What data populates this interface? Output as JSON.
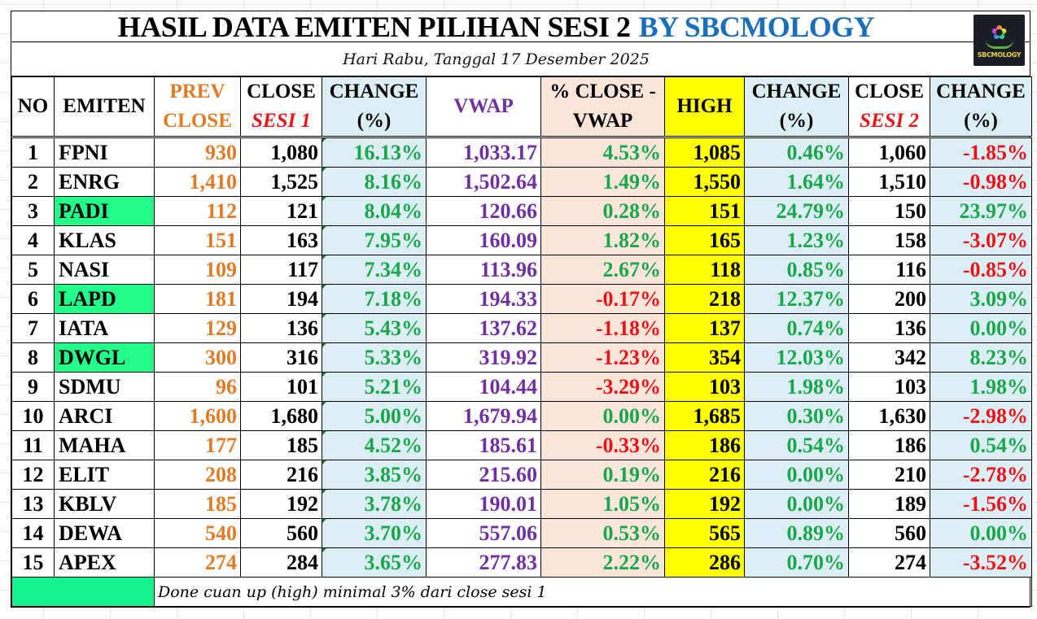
{
  "title": {
    "main": "HASIL DATA EMITEN PILIHAN SESI 2",
    "brand": "BY SBCMOLOGY",
    "subtitle": "Hari Rabu, Tanggal 17 Desember 2025",
    "logo_text": "SBCMOLOGY",
    "logo_icon": "flower-hands-logo-icon"
  },
  "colors": {
    "prev_close": "#e07b27",
    "vwap": "#7030a0",
    "positive": "#1aa64c",
    "negative": "#e8141a",
    "high_bg": "#ffff00",
    "change_bg": "#dbeef4",
    "close_vwap_bg": "#fbe5d8",
    "hit_highlight": "#23ff8a",
    "brand": "#1a6fb8"
  },
  "headers": {
    "no": "NO",
    "emiten": "EMITEN",
    "prev_close_1": "PREV",
    "prev_close_2": "CLOSE",
    "close1_1": "CLOSE",
    "close1_2": "SESI 1",
    "change1_1": "CHANGE",
    "change1_2": "(%)",
    "vwap": "VWAP",
    "close_vwap_1": "% CLOSE  -",
    "close_vwap_2": "VWAP",
    "high": "HIGH",
    "change_high_1": "CHANGE",
    "change_high_2": "(%)",
    "close2_1": "CLOSE",
    "close2_2": "SESI 2",
    "change2_1": "CHANGE",
    "change2_2": "(%)"
  },
  "rows": [
    {
      "no": "1",
      "emiten": "FPNI",
      "hit": false,
      "prev_close": "930",
      "close_sesi1": "1,080",
      "change": "16.13%",
      "vwap": "1,033.17",
      "close_vwap": "4.53%",
      "high": "1,085",
      "change_high": "0.46%",
      "close_sesi2": "1,060",
      "change_sesi2": "-1.85%"
    },
    {
      "no": "2",
      "emiten": "ENRG",
      "hit": false,
      "prev_close": "1,410",
      "close_sesi1": "1,525",
      "change": "8.16%",
      "vwap": "1,502.64",
      "close_vwap": "1.49%",
      "high": "1,550",
      "change_high": "1.64%",
      "close_sesi2": "1,510",
      "change_sesi2": "-0.98%"
    },
    {
      "no": "3",
      "emiten": "PADI",
      "hit": true,
      "prev_close": "112",
      "close_sesi1": "121",
      "change": "8.04%",
      "vwap": "120.66",
      "close_vwap": "0.28%",
      "high": "151",
      "change_high": "24.79%",
      "close_sesi2": "150",
      "change_sesi2": "23.97%"
    },
    {
      "no": "4",
      "emiten": "KLAS",
      "hit": false,
      "prev_close": "151",
      "close_sesi1": "163",
      "change": "7.95%",
      "vwap": "160.09",
      "close_vwap": "1.82%",
      "high": "165",
      "change_high": "1.23%",
      "close_sesi2": "158",
      "change_sesi2": "-3.07%"
    },
    {
      "no": "5",
      "emiten": "NASI",
      "hit": false,
      "prev_close": "109",
      "close_sesi1": "117",
      "change": "7.34%",
      "vwap": "113.96",
      "close_vwap": "2.67%",
      "high": "118",
      "change_high": "0.85%",
      "close_sesi2": "116",
      "change_sesi2": "-0.85%"
    },
    {
      "no": "6",
      "emiten": "LAPD",
      "hit": true,
      "prev_close": "181",
      "close_sesi1": "194",
      "change": "7.18%",
      "vwap": "194.33",
      "close_vwap": "-0.17%",
      "high": "218",
      "change_high": "12.37%",
      "close_sesi2": "200",
      "change_sesi2": "3.09%"
    },
    {
      "no": "7",
      "emiten": "IATA",
      "hit": false,
      "prev_close": "129",
      "close_sesi1": "136",
      "change": "5.43%",
      "vwap": "137.62",
      "close_vwap": "-1.18%",
      "high": "137",
      "change_high": "0.74%",
      "close_sesi2": "136",
      "change_sesi2": "0.00%"
    },
    {
      "no": "8",
      "emiten": "DWGL",
      "hit": true,
      "prev_close": "300",
      "close_sesi1": "316",
      "change": "5.33%",
      "vwap": "319.92",
      "close_vwap": "-1.23%",
      "high": "354",
      "change_high": "12.03%",
      "close_sesi2": "342",
      "change_sesi2": "8.23%"
    },
    {
      "no": "9",
      "emiten": "SDMU",
      "hit": false,
      "prev_close": "96",
      "close_sesi1": "101",
      "change": "5.21%",
      "vwap": "104.44",
      "close_vwap": "-3.29%",
      "high": "103",
      "change_high": "1.98%",
      "close_sesi2": "103",
      "change_sesi2": "1.98%"
    },
    {
      "no": "10",
      "emiten": "ARCI",
      "hit": false,
      "prev_close": "1,600",
      "close_sesi1": "1,680",
      "change": "5.00%",
      "vwap": "1,679.94",
      "close_vwap": "0.00%",
      "high": "1,685",
      "change_high": "0.30%",
      "close_sesi2": "1,630",
      "change_sesi2": "-2.98%"
    },
    {
      "no": "11",
      "emiten": "MAHA",
      "hit": false,
      "prev_close": "177",
      "close_sesi1": "185",
      "change": "4.52%",
      "vwap": "185.61",
      "close_vwap": "-0.33%",
      "high": "186",
      "change_high": "0.54%",
      "close_sesi2": "186",
      "change_sesi2": "0.54%"
    },
    {
      "no": "12",
      "emiten": "ELIT",
      "hit": false,
      "prev_close": "208",
      "close_sesi1": "216",
      "change": "3.85%",
      "vwap": "215.60",
      "close_vwap": "0.19%",
      "high": "216",
      "change_high": "0.00%",
      "close_sesi2": "210",
      "change_sesi2": "-2.78%"
    },
    {
      "no": "13",
      "emiten": "KBLV",
      "hit": false,
      "prev_close": "185",
      "close_sesi1": "192",
      "change": "3.78%",
      "vwap": "190.01",
      "close_vwap": "1.05%",
      "high": "192",
      "change_high": "0.00%",
      "close_sesi2": "189",
      "change_sesi2": "-1.56%"
    },
    {
      "no": "14",
      "emiten": "DEWA",
      "hit": false,
      "prev_close": "540",
      "close_sesi1": "560",
      "change": "3.70%",
      "vwap": "557.06",
      "close_vwap": "0.53%",
      "high": "565",
      "change_high": "0.89%",
      "close_sesi2": "560",
      "change_sesi2": "0.00%"
    },
    {
      "no": "15",
      "emiten": "APEX",
      "hit": false,
      "prev_close": "274",
      "close_sesi1": "284",
      "change": "3.65%",
      "vwap": "277.83",
      "close_vwap": "2.22%",
      "high": "286",
      "change_high": "0.70%",
      "close_sesi2": "274",
      "change_sesi2": "-3.52%"
    }
  ],
  "legend": {
    "text": "Done cuan up (high) minimal 3% dari close sesi 1"
  }
}
